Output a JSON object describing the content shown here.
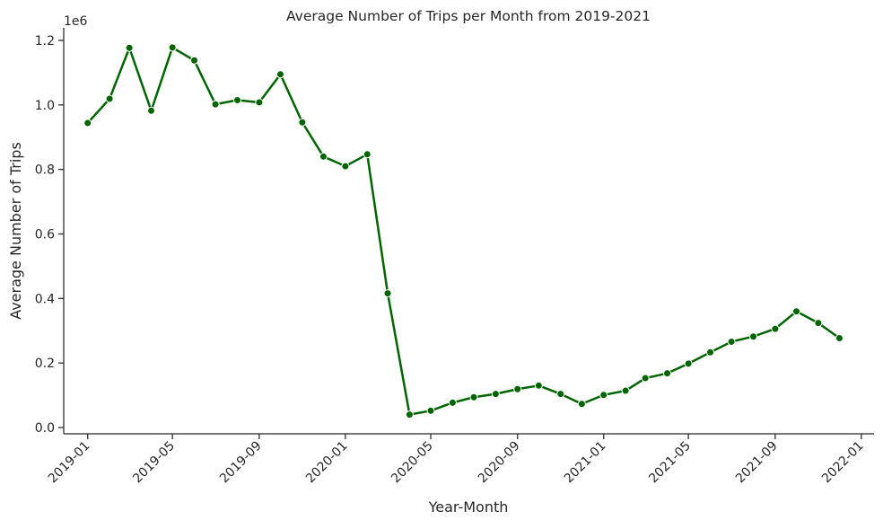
{
  "chart_data": {
    "type": "line",
    "title": "Average Number of Trips per Month from 2019-2021",
    "xlabel": "Year-Month",
    "ylabel": "Average Number of Trips",
    "y_offset_label": "1e6",
    "y_scale": 1000000,
    "ylim": [
      -0.015,
      1.24
    ],
    "yticks": [
      0.0,
      0.2,
      0.4,
      0.6,
      0.8,
      1.0,
      1.2
    ],
    "ytick_labels": [
      "0.0",
      "0.2",
      "0.4",
      "0.6",
      "0.8",
      "1.0",
      "1.2"
    ],
    "xticks": [
      "2019-01",
      "2019-05",
      "2019-09",
      "2020-01",
      "2020-05",
      "2020-09",
      "2021-01",
      "2021-05",
      "2021-09",
      "2022-01"
    ],
    "grid": false,
    "line_color": "#006400",
    "x": [
      "2019-01",
      "2019-02",
      "2019-03",
      "2019-04",
      "2019-05",
      "2019-06",
      "2019-07",
      "2019-08",
      "2019-09",
      "2019-10",
      "2019-11",
      "2019-12",
      "2020-01",
      "2020-02",
      "2020-03",
      "2020-04",
      "2020-05",
      "2020-06",
      "2020-07",
      "2020-08",
      "2020-09",
      "2020-10",
      "2020-11",
      "2020-12",
      "2021-01",
      "2021-02",
      "2021-03",
      "2021-04",
      "2021-05",
      "2021-06",
      "2021-07",
      "2021-08",
      "2021-09",
      "2021-10",
      "2021-11",
      "2021-12"
    ],
    "series": [
      {
        "values": [
          944000,
          1019000,
          1177000,
          982000,
          1178000,
          1138000,
          1002000,
          1015000,
          1008000,
          1095000,
          946000,
          840000,
          810000,
          847000,
          416000,
          40000,
          52000,
          77000,
          94000,
          104000,
          119000,
          130000,
          104000,
          73000,
          101000,
          114000,
          153000,
          168000,
          198000,
          233000,
          266000,
          282000,
          306000,
          360000,
          324000,
          277000
        ]
      }
    ]
  }
}
